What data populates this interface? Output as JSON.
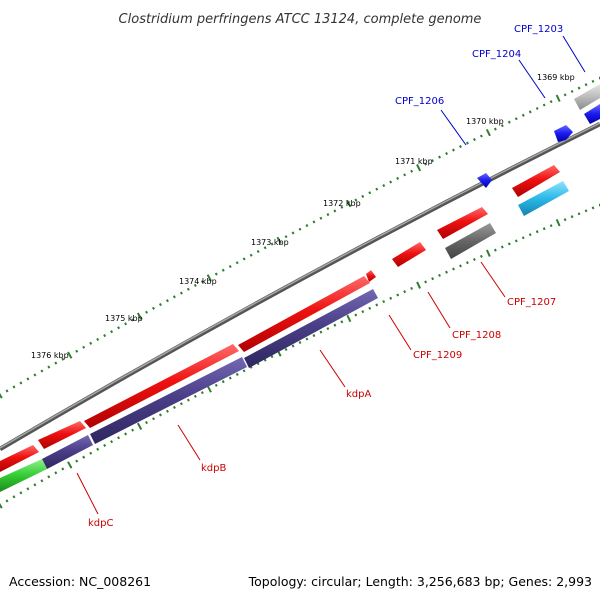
{
  "title": "Clostridium perfringens ATCC 13124, complete genome",
  "footer": {
    "accession": "Accession: NC_008261",
    "topology": "Topology: circular; Length: 3,256,683 bp; Genes: 2,993"
  },
  "scale_labels": [
    "1369 kbp",
    "1370 kbp",
    "1371 kbp",
    "1372 kbp",
    "1373 kbp",
    "1374 kbp",
    "1375 kbp",
    "1376 kbp"
  ],
  "gene_labels": {
    "cpf_1203": "CPF_1203",
    "cpf_1204": "CPF_1204",
    "cpf_1206": "CPF_1206",
    "cpf_1207": "CPF_1207",
    "cpf_1208": "CPF_1208",
    "cpf_1209": "CPF_1209",
    "kdpA": "kdpA",
    "kdpB": "kdpB",
    "kdpC": "kdpC"
  },
  "colors": {
    "forward_cds": "#ee1111",
    "kdp_operon": "#4b3f88",
    "backbone": "#7a7a7a",
    "ticks": "#2e7d2e",
    "label_forward": "#cc0000",
    "label_reverse": "#0000cc",
    "blue_gene": "#1a1aee",
    "cyan_gene": "#2ab8e8",
    "green_gene": "#33cc33",
    "grey_gene": "#666666",
    "lightgrey_gene": "#bbbbbb"
  }
}
